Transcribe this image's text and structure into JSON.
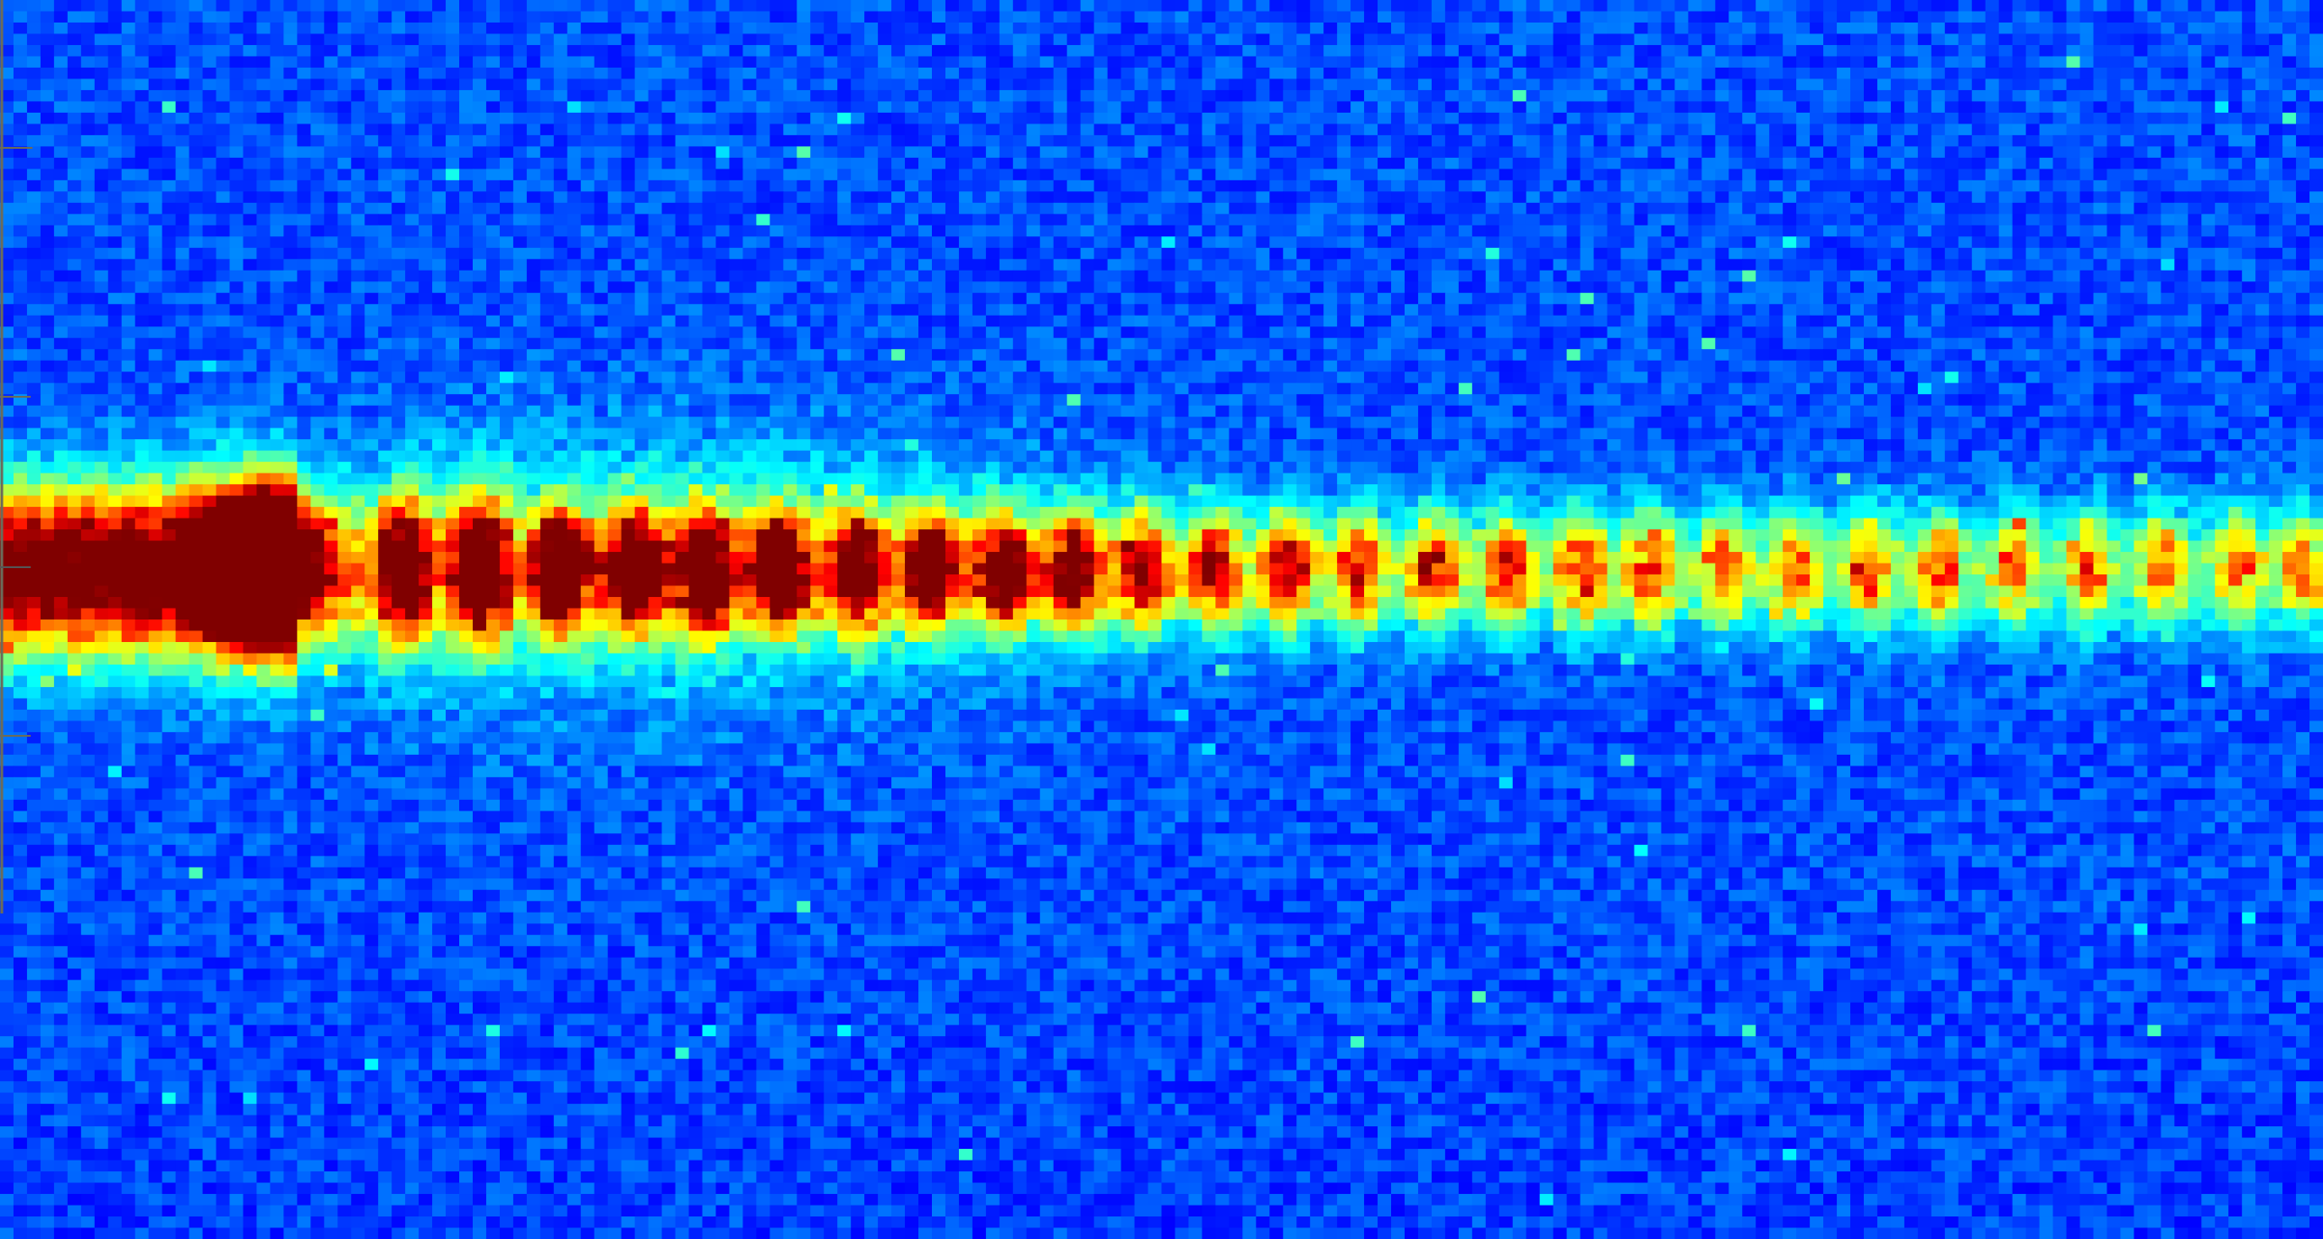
{
  "chart_data": {
    "type": "heatmap",
    "colormap": "jet",
    "title": "",
    "xlabel": "",
    "ylabel": "",
    "grid": false,
    "legend": "none",
    "background_level": 0.2,
    "band_center_fraction": 0.46,
    "lobes": {
      "description_free": true,
      "positions": [
        0.118,
        0.173,
        0.207,
        0.241,
        0.273,
        0.304,
        0.336,
        0.369,
        0.401,
        0.432,
        0.462,
        0.492,
        0.523,
        0.554,
        0.585,
        0.617,
        0.649,
        0.681,
        0.711,
        0.742,
        0.773,
        0.805,
        0.835,
        0.867,
        0.899,
        0.931,
        0.963,
        0.992
      ],
      "intensities": [
        1.0,
        1.0,
        1.0,
        1.0,
        1.0,
        1.0,
        0.98,
        0.95,
        0.9,
        0.88,
        0.85,
        0.8,
        0.75,
        0.72,
        0.7,
        0.68,
        0.66,
        0.64,
        0.62,
        0.6,
        0.6,
        0.58,
        0.58,
        0.57,
        0.56,
        0.55,
        0.55,
        0.55
      ]
    },
    "left_band_intensity": 0.95,
    "axis_ticks_left": 4
  }
}
